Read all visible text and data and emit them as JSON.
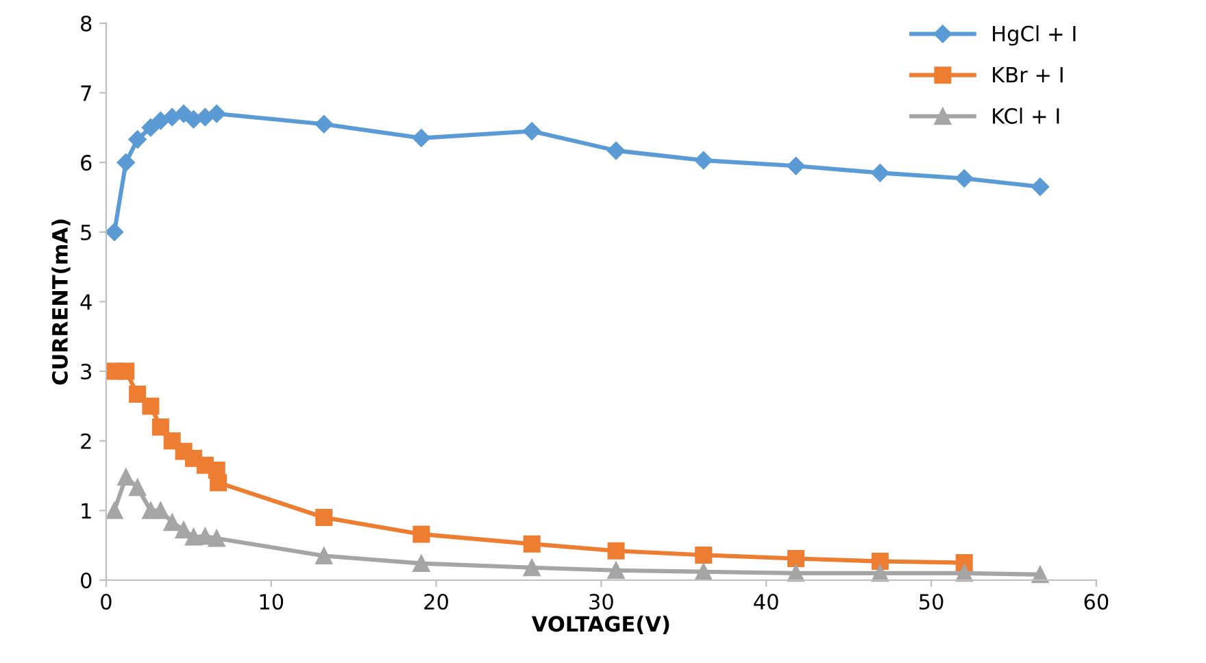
{
  "chart_data": {
    "type": "line",
    "xlabel": "VOLTAGE(V)",
    "ylabel": "CURRENT(mA)",
    "xlim": [
      0,
      60
    ],
    "xticks": [
      0,
      10,
      20,
      30,
      40,
      50,
      60
    ],
    "ylim": [
      0,
      8
    ],
    "yticks": [
      0,
      1,
      2,
      3,
      4,
      5,
      6,
      7,
      8
    ],
    "grid": false,
    "legend": "top right",
    "line_style": "solid",
    "series": [
      {
        "name": "HgCl + I",
        "color": "#5b9bd5",
        "marker": "diamond",
        "x": [
          0.5,
          1.2,
          1.9,
          2.7,
          3.3,
          4.0,
          4.7,
          5.3,
          6.0,
          6.7,
          13.2,
          19.1,
          25.8,
          30.9,
          36.2,
          41.8,
          46.9,
          52.0,
          56.6
        ],
        "values": [
          5.0,
          6.0,
          6.33,
          6.5,
          6.6,
          6.65,
          6.7,
          6.62,
          6.65,
          6.7,
          6.55,
          6.35,
          6.45,
          6.17,
          6.03,
          5.95,
          5.85,
          5.77,
          5.65
        ]
      },
      {
        "name": "KBr + I",
        "color": "#ed7d31",
        "marker": "square",
        "x": [
          0.5,
          1.2,
          1.9,
          2.7,
          3.3,
          4.0,
          4.7,
          5.3,
          6.0,
          6.7,
          6.8,
          13.2,
          19.1,
          25.8,
          30.9,
          36.2,
          41.8,
          46.9,
          52.0
        ],
        "values": [
          3.0,
          3.0,
          2.67,
          2.5,
          2.2,
          2.0,
          1.85,
          1.75,
          1.65,
          1.58,
          1.4,
          0.9,
          0.66,
          0.52,
          0.42,
          0.36,
          0.31,
          0.27,
          0.25
        ]
      },
      {
        "name": "KCl + I",
        "color": "#a5a5a5",
        "marker": "triangle",
        "x": [
          0.5,
          1.2,
          1.9,
          2.7,
          3.3,
          4.0,
          4.7,
          5.3,
          6.0,
          6.7,
          13.2,
          19.1,
          25.8,
          30.9,
          36.2,
          41.8,
          46.9,
          52.0,
          56.6
        ],
        "values": [
          1.0,
          1.48,
          1.33,
          1.0,
          1.0,
          0.83,
          0.72,
          0.62,
          0.63,
          0.6,
          0.35,
          0.24,
          0.18,
          0.14,
          0.12,
          0.1,
          0.1,
          0.1,
          0.08
        ]
      }
    ]
  }
}
